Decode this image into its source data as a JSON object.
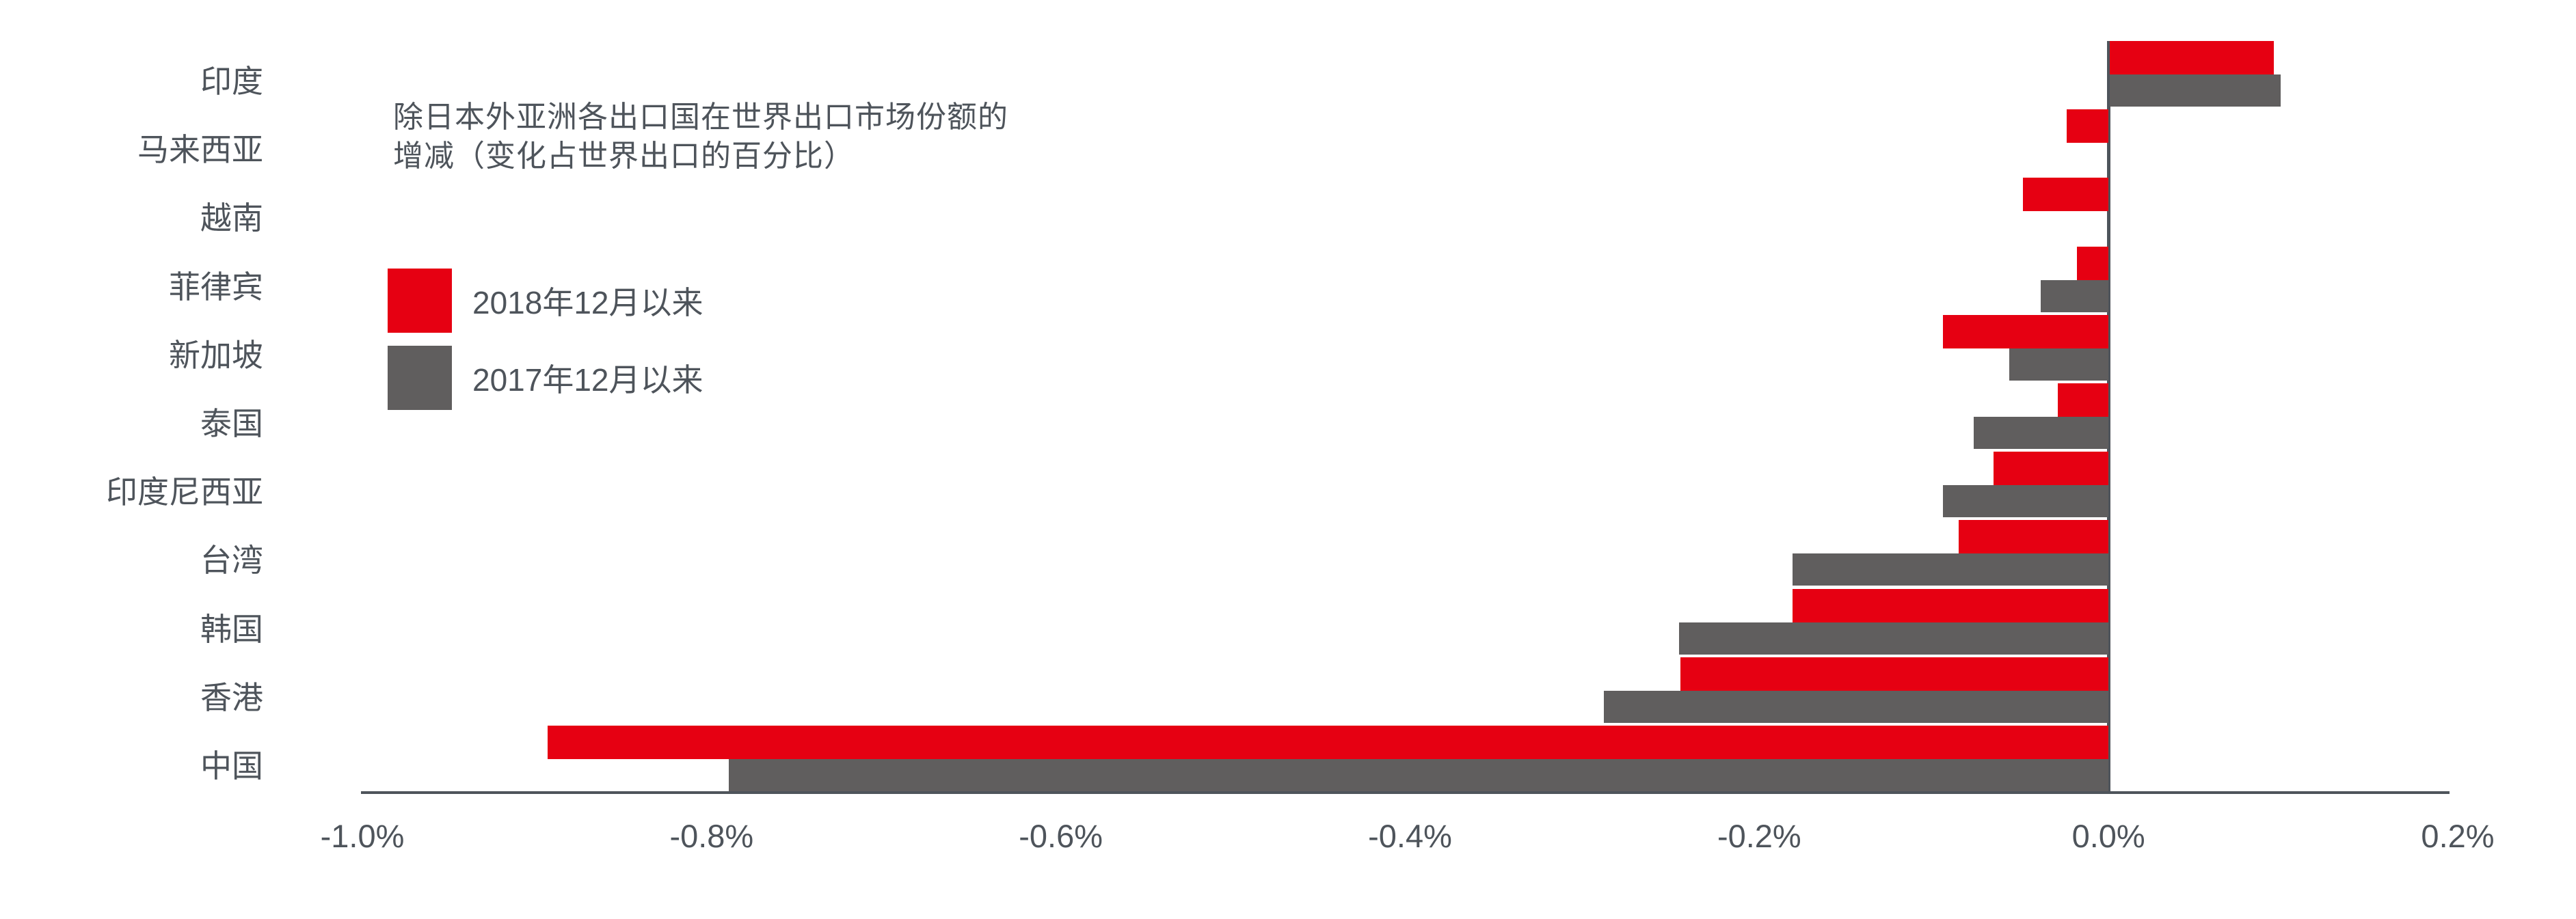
{
  "title": {
    "line1": "除日本外亚洲各出口国在世界出口市场份额的",
    "line2": "增减（变化占世界出口的百分比）"
  },
  "legend": {
    "items": [
      {
        "label": "2018年12月以来",
        "color": "#E60012"
      },
      {
        "label": "2017年12月以来",
        "color": "#605E5E"
      }
    ]
  },
  "colors": {
    "red_series": "#E60012",
    "gray_series": "#605E5E",
    "axis": "#4E545B",
    "text": "#4E545B",
    "background": "#FFFFFF"
  },
  "chart_data": {
    "type": "bar",
    "orientation": "horizontal",
    "title": "除日本外亚洲各出口国在世界出口市场份额的增减（变化占世界出口的百分比）",
    "unit": "% of world exports",
    "categories": [
      "印度",
      "马来西亚",
      "越南",
      "菲律宾",
      "新加坡",
      "泰国",
      "印度尼西亚",
      "台湾",
      "韩国",
      "香港",
      "中国"
    ],
    "series": [
      {
        "name": "2018年12月以来",
        "color": "#E60012",
        "values": [
          0.094,
          -0.024,
          -0.049,
          -0.018,
          -0.095,
          -0.029,
          -0.066,
          -0.086,
          -0.181,
          -0.245,
          -0.894
        ]
      },
      {
        "name": "2017年12月以来",
        "color": "#605E5E",
        "values": [
          0.098,
          0.0,
          0.0,
          -0.039,
          -0.057,
          -0.077,
          -0.095,
          -0.181,
          -0.246,
          -0.289,
          -0.79
        ]
      }
    ],
    "x_ticks": [
      "-1.0%",
      "-0.8%",
      "-0.6%",
      "-0.4%",
      "-0.2%",
      "0.0%",
      "0.2%"
    ],
    "xlim": [
      -1.0,
      0.2
    ],
    "grid": false,
    "legend_position": "upper-left",
    "bar_baseline": "zero"
  }
}
